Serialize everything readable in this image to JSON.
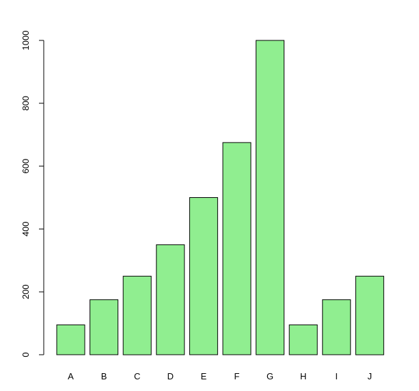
{
  "chart_data": {
    "type": "bar",
    "title": "",
    "xlabel": "",
    "ylabel": "",
    "categories": [
      "A",
      "B",
      "C",
      "D",
      "E",
      "F",
      "G",
      "H",
      "I",
      "J"
    ],
    "values": [
      95,
      175,
      250,
      350,
      500,
      675,
      1000,
      95,
      175,
      250
    ],
    "ylim": [
      0,
      1000
    ],
    "yticks": [
      0,
      200,
      400,
      600,
      800,
      1000
    ],
    "ytick_labels": [
      "0",
      "200",
      "400",
      "600",
      "800",
      "1000"
    ],
    "grid": false,
    "legend": "none",
    "colors": {
      "bar_fill": "#90ee90",
      "bar_stroke": "#000000",
      "axis": "#000000",
      "background": "#ffffff"
    }
  }
}
